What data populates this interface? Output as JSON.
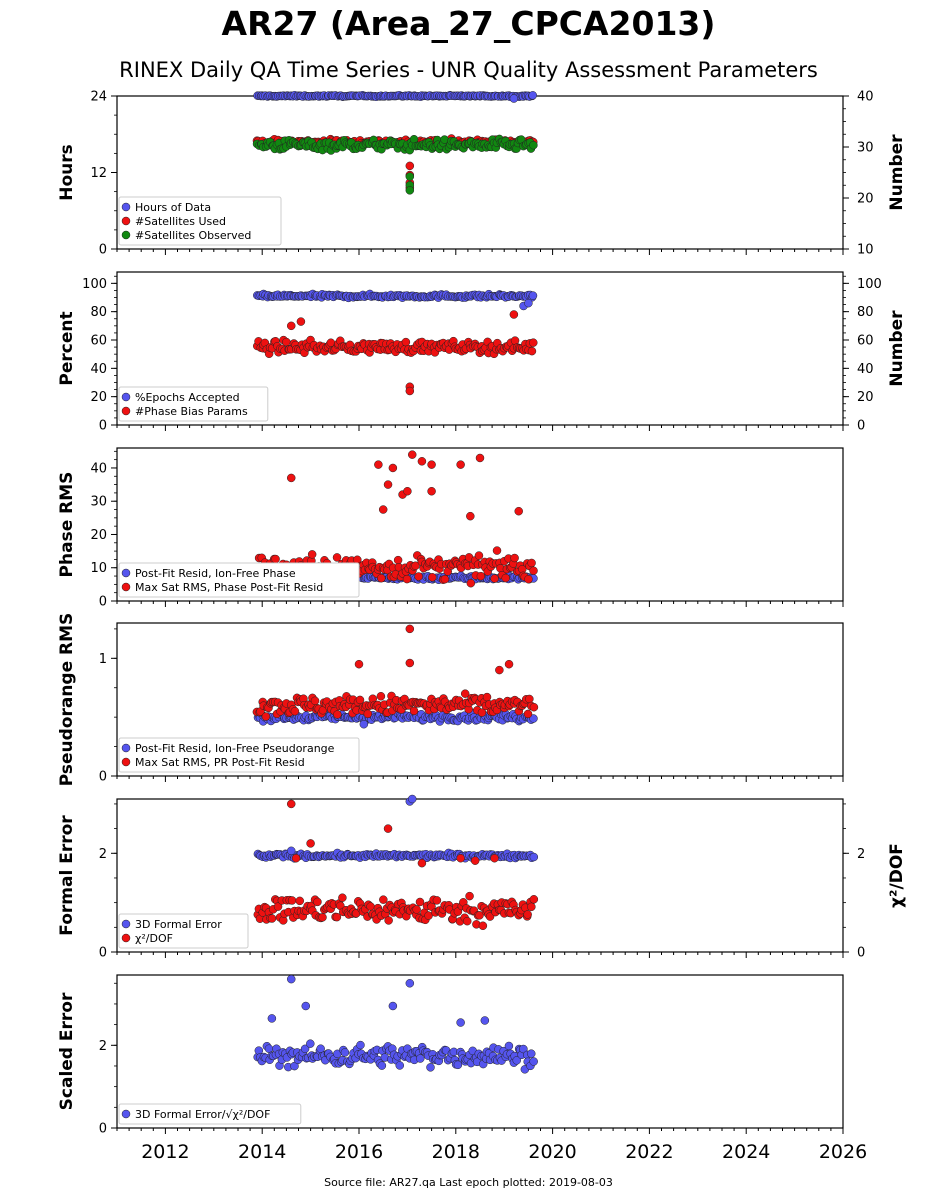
{
  "header": {
    "title": "AR27 (Area_27_CPCA2013)",
    "subtitle": "RINEX Daily QA Time Series - UNR Quality Assessment Parameters"
  },
  "footer": {
    "text": "Source file: AR27.qa Last epoch plotted: 2019-08-03"
  },
  "colors": {
    "blue": "#5555ee",
    "red": "#ee1111",
    "green": "#118811",
    "dark": "#111133"
  },
  "chart_data": [
    {
      "type": "scatter",
      "ylabel": "Hours",
      "ylim": [
        0,
        24
      ],
      "yticks": [
        "0",
        "12",
        "24"
      ],
      "y2label": "Number",
      "y2lim": [
        10,
        40
      ],
      "y2ticks": [
        "10",
        "20",
        "30",
        "40"
      ],
      "xlim": [
        2011,
        2026
      ],
      "legend": "lower-left",
      "series": [
        {
          "name": "Hours of Data",
          "color": "blue",
          "axis": "left",
          "x_range": [
            2013.9,
            2019.6
          ],
          "center": 24,
          "spread": 0.1,
          "extra": [
            [
              2019.2,
              23.6
            ]
          ]
        },
        {
          "name": "#Satellites Used",
          "color": "red",
          "axis": "right",
          "x_range": [
            2013.9,
            2019.6
          ],
          "center": 31,
          "spread": 0.5,
          "extra": [
            [
              2017.05,
              26.3
            ],
            [
              2017.05,
              24.5
            ],
            [
              2017.05,
              23.0
            ],
            [
              2017.05,
              22.0
            ]
          ]
        },
        {
          "name": "#Satellites Observed",
          "color": "green",
          "axis": "right",
          "x_range": [
            2013.9,
            2019.6
          ],
          "center": 30.4,
          "spread": 1.0,
          "extra": [
            [
              2017.05,
              24.2
            ],
            [
              2017.05,
              22.5
            ],
            [
              2017.05,
              21.5
            ]
          ]
        }
      ]
    },
    {
      "type": "scatter",
      "ylabel": "Percent",
      "ylim": [
        0,
        108
      ],
      "yticks": [
        "0",
        "20",
        "40",
        "60",
        "80",
        "100"
      ],
      "y2label": "Number",
      "y2lim": [
        0,
        108
      ],
      "y2ticks": [
        "0",
        "20",
        "40",
        "60",
        "80",
        "100"
      ],
      "xlim": [
        2011,
        2026
      ],
      "legend": "lower-left",
      "series": [
        {
          "name": "%Epochs Accepted",
          "color": "blue",
          "axis": "left",
          "x_range": [
            2013.9,
            2019.6
          ],
          "center": 91,
          "spread": 1.2,
          "extra": [
            [
              2019.4,
              84
            ],
            [
              2019.5,
              86
            ]
          ]
        },
        {
          "name": "#Phase Bias Params",
          "color": "red",
          "axis": "right",
          "x_range": [
            2013.9,
            2019.6
          ],
          "center": 55,
          "spread": 4,
          "extra": [
            [
              2014.8,
              73
            ],
            [
              2014.6,
              70
            ],
            [
              2017.05,
              27
            ],
            [
              2017.05,
              24
            ],
            [
              2019.2,
              78
            ]
          ]
        }
      ]
    },
    {
      "type": "scatter",
      "ylabel": "Phase RMS",
      "ylim": [
        0,
        46
      ],
      "yticks": [
        "0",
        "10",
        "20",
        "30",
        "40"
      ],
      "xlim": [
        2011,
        2026
      ],
      "legend": "lower-left",
      "series": [
        {
          "name": "Post-Fit Resid, Ion-Free Phase",
          "color": "blue",
          "axis": "left",
          "x_range": [
            2013.9,
            2019.6
          ],
          "center": 7,
          "spread": 0.6,
          "extra": []
        },
        {
          "name": "Max Sat RMS, Phase Post-Fit Resid",
          "color": "red",
          "axis": "left",
          "x_range": [
            2013.9,
            2019.6
          ],
          "center": 10,
          "spread": 3.5,
          "extra": [
            [
              2014.6,
              37
            ],
            [
              2016.4,
              41
            ],
            [
              2016.6,
              35
            ],
            [
              2016.7,
              40
            ],
            [
              2016.9,
              32
            ],
            [
              2017.1,
              44
            ],
            [
              2017.3,
              42
            ],
            [
              2017.5,
              41
            ],
            [
              2017.5,
              33
            ],
            [
              2018.1,
              41
            ],
            [
              2018.5,
              43
            ],
            [
              2016.5,
              27.5
            ],
            [
              2017.0,
              33
            ],
            [
              2018.3,
              25.5
            ],
            [
              2019.3,
              27
            ]
          ]
        }
      ]
    },
    {
      "type": "scatter",
      "ylabel": "Pseudorange RMS",
      "ylim": [
        0,
        1.3
      ],
      "yticks": [
        "0",
        "1"
      ],
      "xlim": [
        2011,
        2026
      ],
      "legend": "lower-left",
      "series": [
        {
          "name": "Post-Fit Resid, Ion-Free Pseudorange",
          "color": "blue",
          "axis": "left",
          "x_range": [
            2013.9,
            2019.6
          ],
          "center": 0.5,
          "spread": 0.03,
          "extra": [
            [
              2016.1,
              0.44
            ]
          ]
        },
        {
          "name": "Max Sat RMS, PR Post-Fit Resid",
          "color": "red",
          "axis": "left",
          "x_range": [
            2013.9,
            2019.6
          ],
          "center": 0.6,
          "spread": 0.08,
          "extra": [
            [
              2016.0,
              0.95
            ],
            [
              2017.05,
              1.25
            ],
            [
              2017.05,
              0.96
            ],
            [
              2019.1,
              0.95
            ],
            [
              2018.9,
              0.9
            ]
          ]
        }
      ]
    },
    {
      "type": "scatter",
      "ylabel": "Formal Error",
      "ylim": [
        0,
        3.1
      ],
      "yticks": [
        "0",
        "2"
      ],
      "y2label": "χ²/DOF",
      "y2lim": [
        0,
        3.1
      ],
      "y2ticks": [
        "0",
        "2"
      ],
      "xlim": [
        2011,
        2026
      ],
      "legend": "lower-left",
      "series": [
        {
          "name": "3D Formal Error",
          "color": "blue",
          "axis": "left",
          "x_range": [
            2013.9,
            2019.6
          ],
          "center": 1.95,
          "spread": 0.04,
          "extra": [
            [
              2017.05,
              3.05
            ],
            [
              2017.1,
              3.1
            ],
            [
              2014.6,
              2.05
            ]
          ]
        },
        {
          "name": "χ²/DOF",
          "color": "red",
          "axis": "right",
          "x_range": [
            2013.9,
            2019.6
          ],
          "center": 0.85,
          "spread": 0.25,
          "extra": [
            [
              2014.6,
              3.0
            ],
            [
              2016.6,
              2.5
            ],
            [
              2014.7,
              1.9
            ],
            [
              2017.3,
              1.8
            ],
            [
              2018.1,
              1.9
            ],
            [
              2018.4,
              1.85
            ],
            [
              2015.0,
              2.2
            ],
            [
              2018.8,
              1.9
            ]
          ]
        }
      ]
    },
    {
      "type": "scatter",
      "ylabel": "Scaled Error",
      "ylim": [
        0,
        3.7
      ],
      "yticks": [
        "0",
        "2"
      ],
      "xlim": [
        2011,
        2026
      ],
      "legend": "lower-left",
      "series": [
        {
          "name": "3D Formal Error/√χ²/DOF",
          "color": "blue",
          "axis": "left",
          "x_range": [
            2013.9,
            2019.6
          ],
          "center": 1.75,
          "spread": 0.25,
          "extra": [
            [
              2014.6,
              3.6
            ],
            [
              2017.05,
              3.5
            ],
            [
              2016.7,
              2.95
            ],
            [
              2014.9,
              2.95
            ],
            [
              2014.2,
              2.65
            ],
            [
              2018.6,
              2.6
            ],
            [
              2018.1,
              2.55
            ]
          ]
        }
      ]
    }
  ],
  "x_axis": {
    "ticks": [
      "2012",
      "2014",
      "2016",
      "2018",
      "2020",
      "2022",
      "2024",
      "2026"
    ],
    "values": [
      2012,
      2014,
      2016,
      2018,
      2020,
      2022,
      2024,
      2026
    ]
  }
}
